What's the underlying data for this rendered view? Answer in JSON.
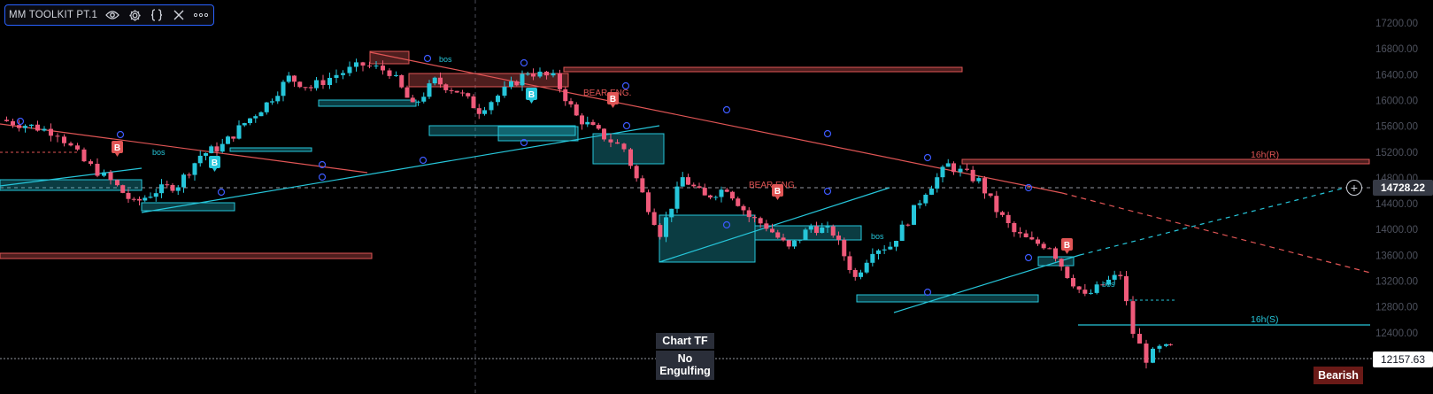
{
  "indicator": {
    "title": "MM TOOLKIT PT.1",
    "icons": [
      "eye-icon",
      "gear-icon",
      "braces-icon",
      "close-icon",
      "more-icon"
    ]
  },
  "price_scale": {
    "ticks": [
      "17200.00",
      "16800.00",
      "16400.00",
      "16000.00",
      "15600.00",
      "15200.00",
      "14800.00",
      "14400.00",
      "14000.00",
      "13600.00",
      "13200.00",
      "12800.00",
      "12400.00",
      "12000.00"
    ],
    "min": 11850,
    "max": 17450,
    "current_price": "14728.22",
    "last_price": "12157.63"
  },
  "labels": {
    "bos": "bos",
    "bear_eng": "BEAR ENG.",
    "badge_b": "B",
    "level_r": "16h(R)",
    "level_s": "16h(S)"
  },
  "table": {
    "row1": "Chart TF",
    "row2": "No Engulfing"
  },
  "bias": {
    "label": "Bearish"
  },
  "colors": {
    "bull": "#26c6da",
    "bear": "#ef5a7a",
    "resistance": "#e05555",
    "support": "#26c6da",
    "background": "#000000"
  }
}
